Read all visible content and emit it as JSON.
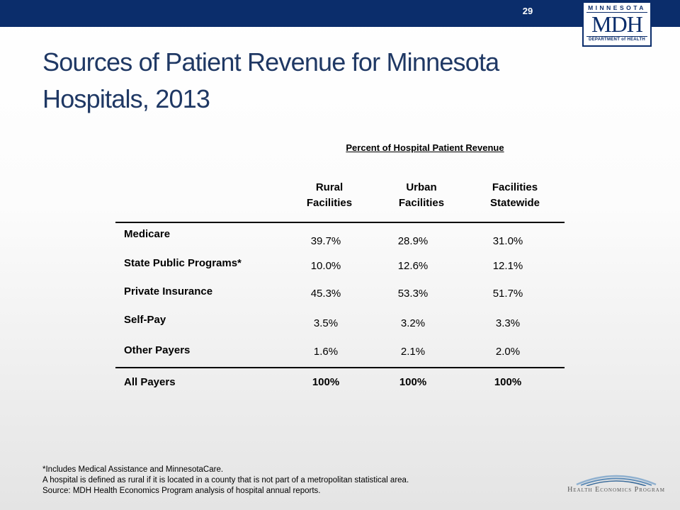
{
  "slide": {
    "number": "29",
    "title": "Sources of Patient Revenue for Minnesota Hospitals, 2013"
  },
  "logo": {
    "state": "MINNESOTA",
    "abbr": "MDH",
    "dept": "DEPARTMENT of HEALTH"
  },
  "table": {
    "header": "Percent of Hospital Patient Revenue",
    "columns": [
      "Rural\nFacilities",
      "Urban\nFacilities",
      "Facilities\nStatewide"
    ],
    "rows": [
      {
        "label": "Medicare",
        "values": [
          "39.7%",
          "28.9%",
          "31.0%"
        ]
      },
      {
        "label": "State Public Programs*",
        "values": [
          "10.0%",
          "12.6%",
          "12.1%"
        ]
      },
      {
        "label": "Private Insurance",
        "values": [
          "45.3%",
          "53.3%",
          "51.7%"
        ]
      },
      {
        "label": "Self-Pay",
        "values": [
          "3.5%",
          "3.2%",
          "3.3%"
        ]
      },
      {
        "label": "Other Payers",
        "values": [
          "1.6%",
          "2.1%",
          "2.0%"
        ]
      }
    ],
    "total": {
      "label": "All Payers",
      "values": [
        "100%",
        "100%",
        "100%"
      ]
    }
  },
  "footnotes": [
    "*Includes Medical Assistance and MinnesotaCare.",
    "A hospital is defined as rural if it is located in a county that is not part of a metropolitan statistical area.",
    "Source:  MDH Health Economics Program analysis of hospital annual reports."
  ],
  "hep_logo": {
    "text": "Health Economics Program"
  },
  "colors": {
    "top_bar": "#0b2d6b",
    "title": "#1f3864",
    "logo": "#0b2d6b"
  }
}
